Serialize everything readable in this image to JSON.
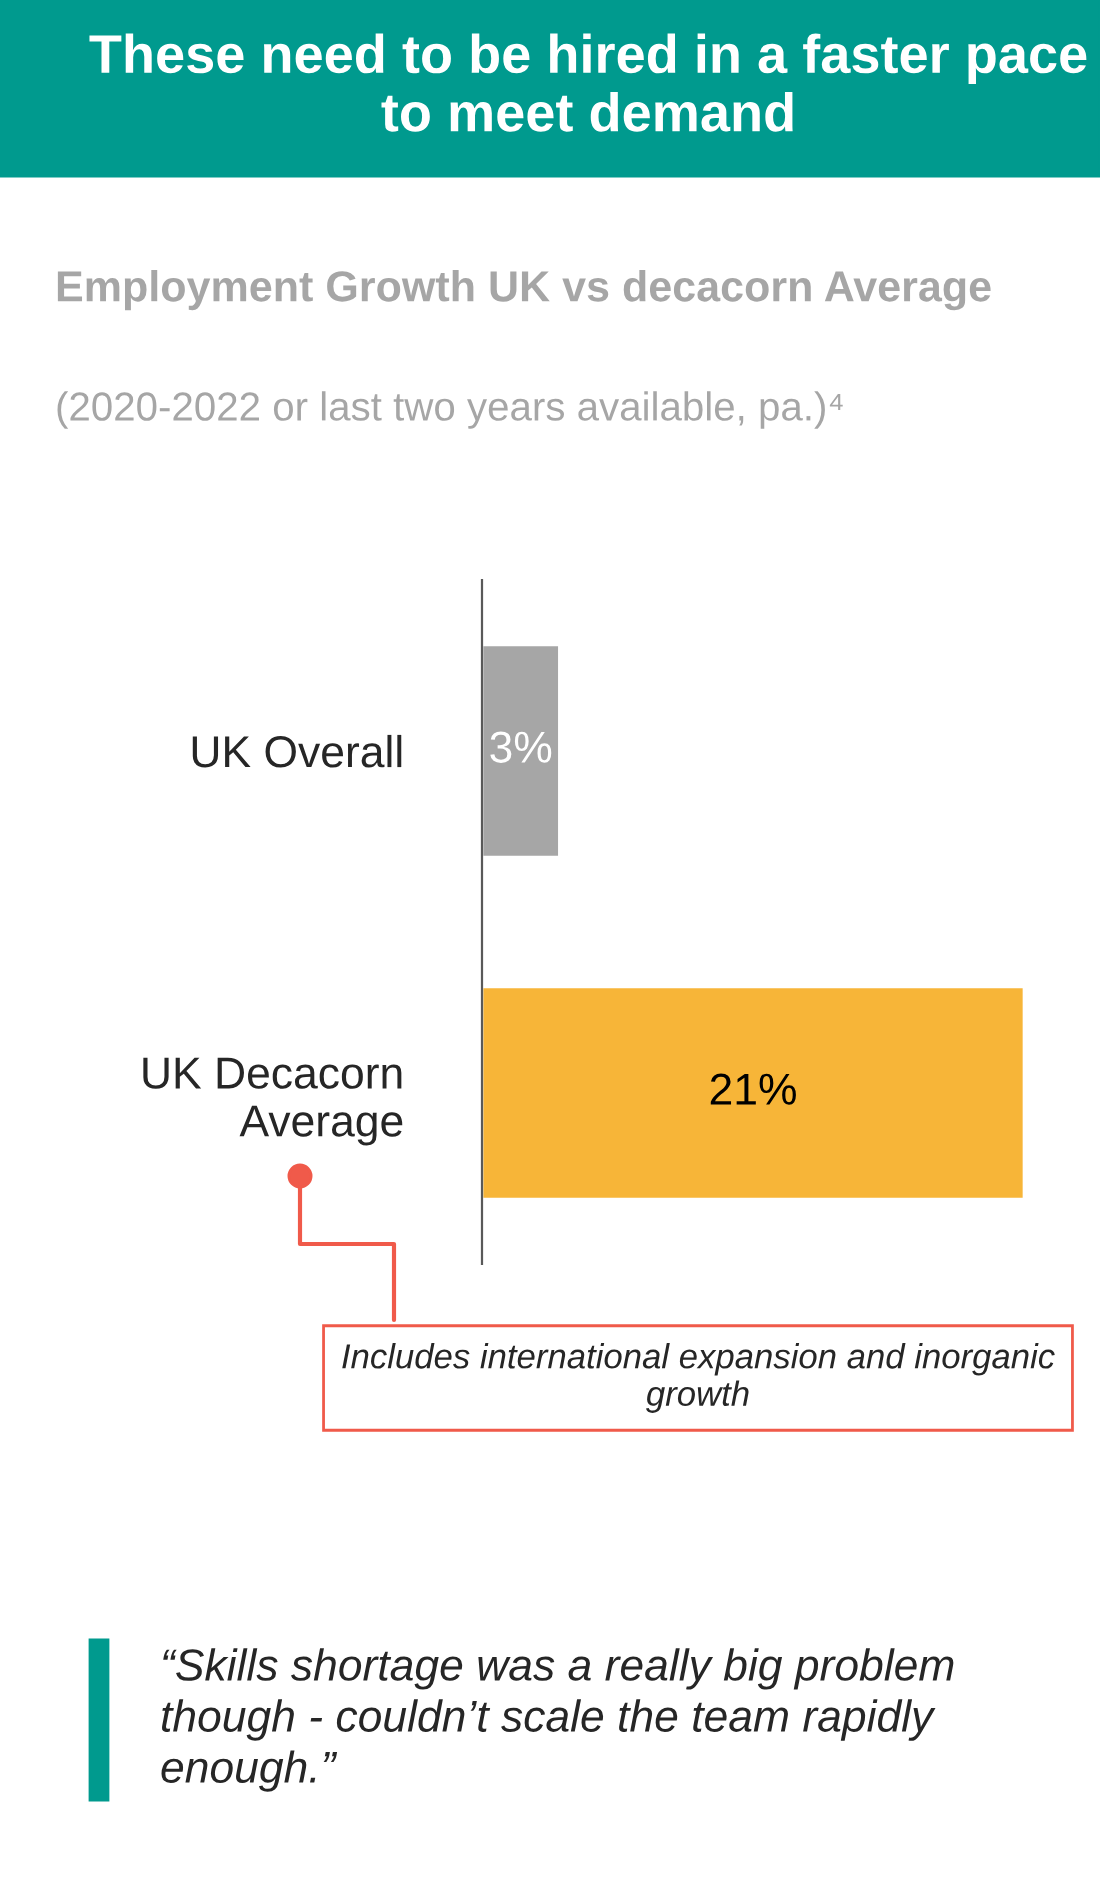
{
  "chart_data": {
    "type": "bar",
    "orientation": "horizontal",
    "title": "These need to be hired in a faster pace to meet demand",
    "subtitle": "Employment Growth UK vs decacorn Average",
    "annotations": [
      "(2020-2022 or last two years available, pa.)⁴",
      "Includes international expansion and inorganic growth",
      "“Skills shortage was a really big problem though - couldn’t scale the team rapidly enough.”"
    ],
    "categories": [
      "UK Overall",
      "UK Decacorn Average"
    ],
    "values": [
      3,
      21
    ],
    "colors": [
      "#a6a6a6",
      "#f7b538"
    ],
    "value_labels": [
      "3%",
      "21%"
    ],
    "tick_labels": "y"
  }
}
